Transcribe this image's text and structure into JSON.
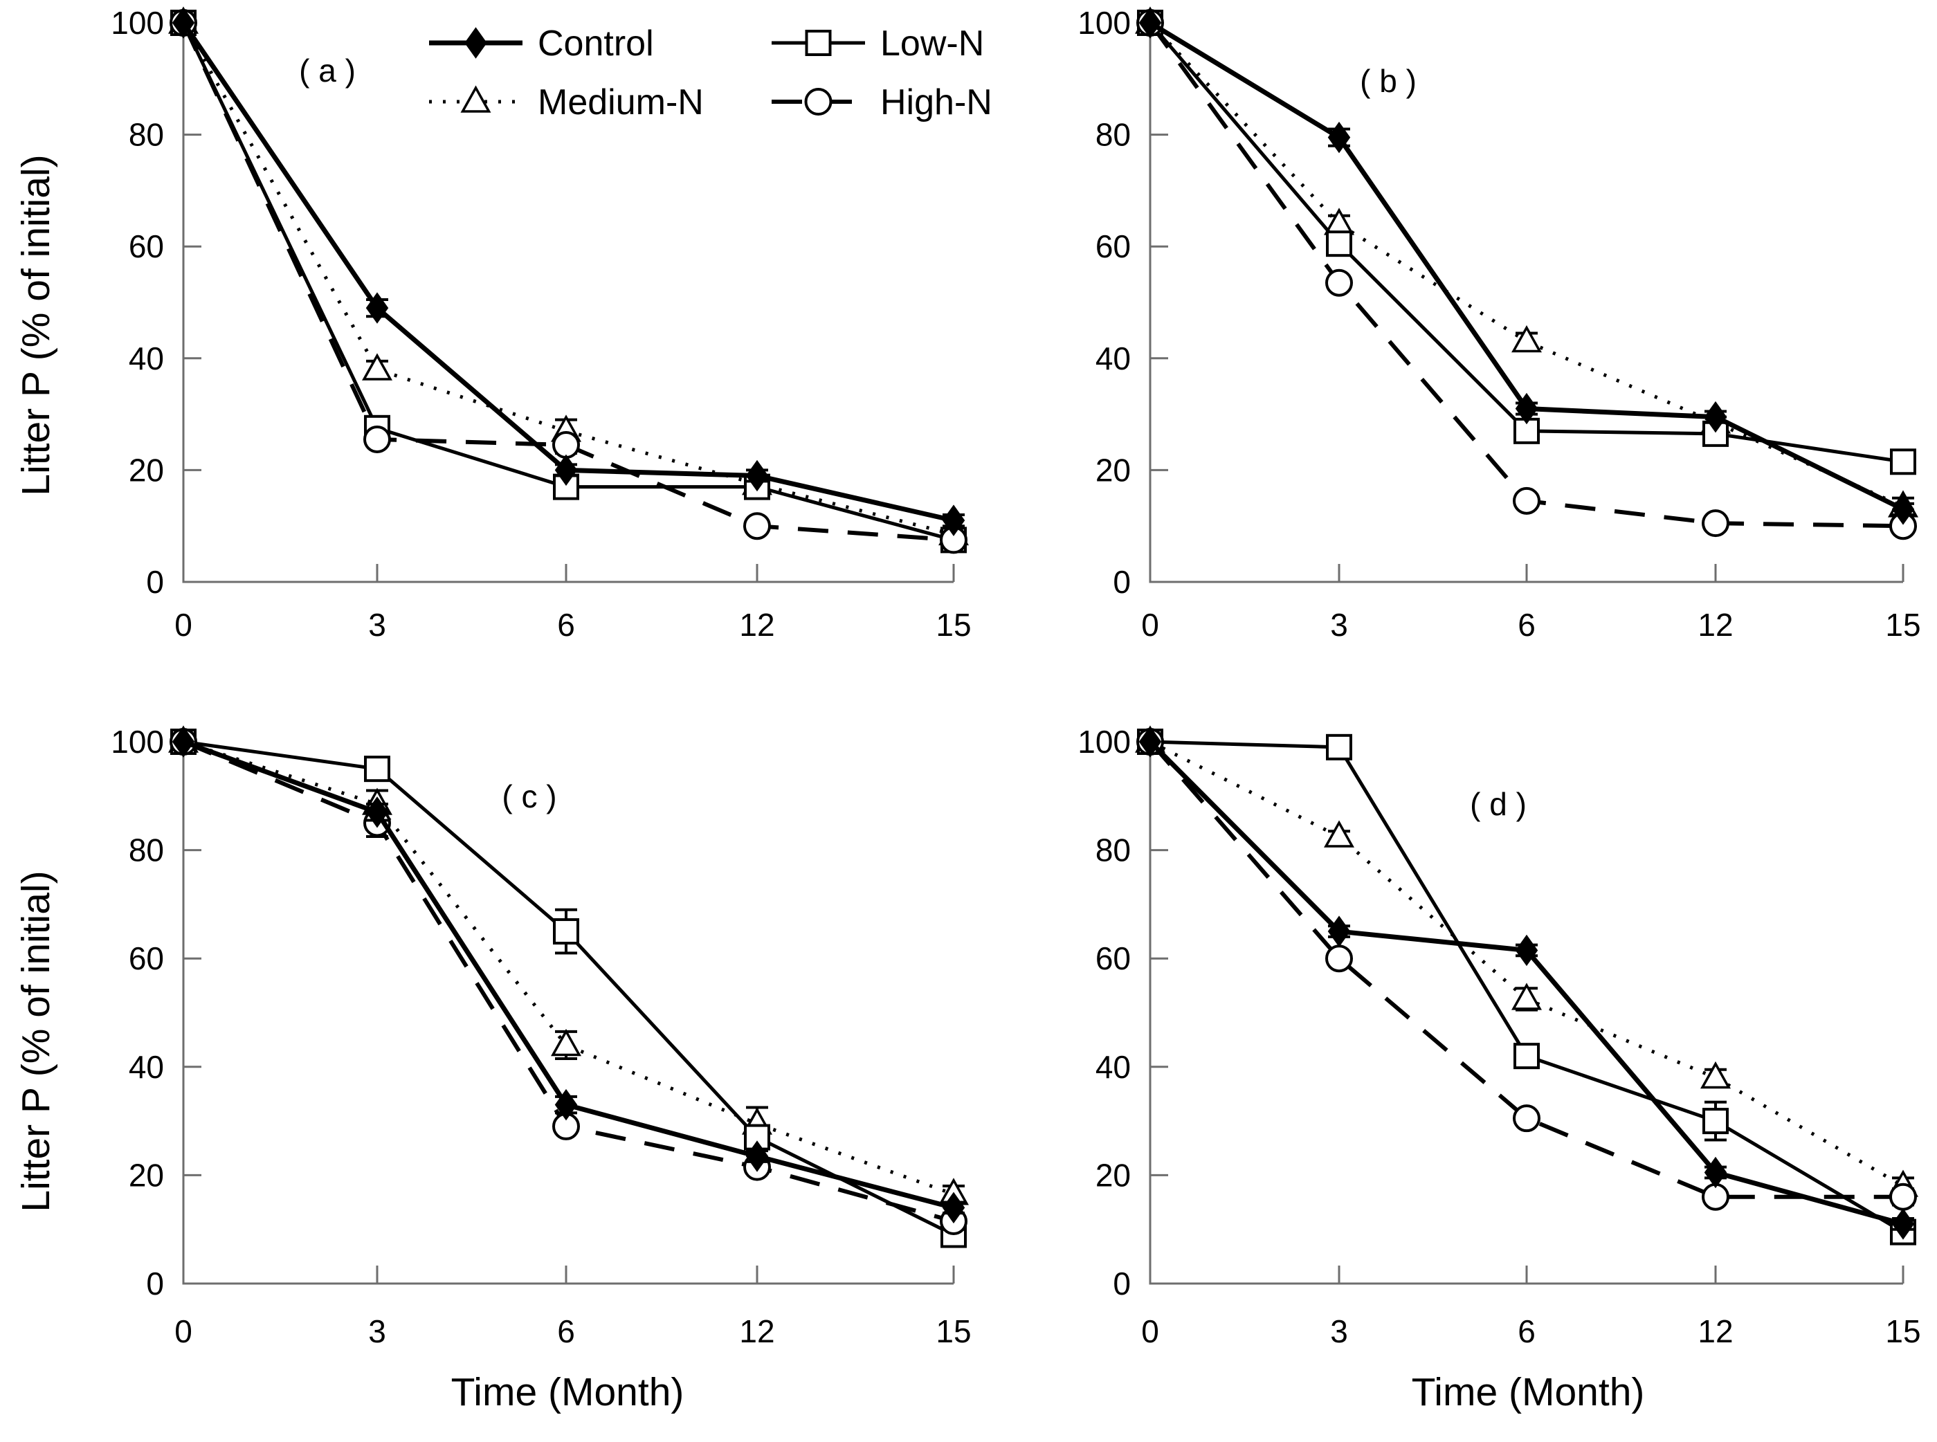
{
  "figure": {
    "y_axis_title": "Litter P (% of initial)",
    "x_axis_title": "Time (Month)",
    "background_color": "#ffffff",
    "ink_color": "#000000",
    "axis_line_color": "#6e6e6e"
  },
  "legend": {
    "items": [
      {
        "series": "Control",
        "label": "Control",
        "marker_icon": "filled-diamond-icon",
        "line": "solid"
      },
      {
        "series": "Low-N",
        "label": "Low-N",
        "marker_icon": "open-square-icon",
        "line": "solid"
      },
      {
        "series": "Medium-N",
        "label": "Medium-N",
        "marker_icon": "open-triangle-icon",
        "line": "dotted"
      },
      {
        "series": "High-N",
        "label": "High-N",
        "marker_icon": "open-circle-icon",
        "line": "dashed"
      }
    ]
  },
  "series_styles": {
    "Control": {
      "marker": "filled-diamond",
      "line": "solid",
      "color": "#000000"
    },
    "Low-N": {
      "marker": "open-square",
      "line": "solid",
      "color": "#000000"
    },
    "Medium-N": {
      "marker": "open-triangle",
      "line": "dotted",
      "color": "#000000"
    },
    "High-N": {
      "marker": "open-circle",
      "line": "dashed",
      "color": "#000000"
    }
  },
  "chart_data": [
    {
      "type": "line",
      "panel": "a",
      "panel_label": "( a )",
      "xlabel": "Time (Month)",
      "ylabel": "Litter P (% of initial)",
      "x_categories": [
        0,
        3,
        6,
        12,
        15
      ],
      "y_ticks": [
        0,
        20,
        40,
        60,
        80,
        100
      ],
      "ylim": [
        0,
        100
      ],
      "series": [
        {
          "name": "Control",
          "values": [
            100,
            49,
            20,
            19,
            11
          ],
          "errors": [
            0,
            1.5,
            1,
            1,
            1
          ]
        },
        {
          "name": "Low-N",
          "values": [
            100,
            27.5,
            17,
            17,
            7.5
          ],
          "errors": [
            0,
            1,
            1,
            1,
            1
          ]
        },
        {
          "name": "Medium-N",
          "values": [
            100,
            38,
            27,
            17.5,
            8.5
          ],
          "errors": [
            0,
            1.5,
            2,
            1.5,
            1
          ]
        },
        {
          "name": "High-N",
          "values": [
            100,
            25.5,
            24.5,
            10,
            7.5
          ],
          "errors": [
            0,
            1,
            1.5,
            1,
            1
          ]
        }
      ]
    },
    {
      "type": "line",
      "panel": "b",
      "panel_label": "( b )",
      "xlabel": "Time (Month)",
      "ylabel": "Litter P (% of initial)",
      "x_categories": [
        0,
        3,
        6,
        12,
        15
      ],
      "y_ticks": [
        0,
        20,
        40,
        60,
        80,
        100
      ],
      "ylim": [
        0,
        100
      ],
      "series": [
        {
          "name": "Control",
          "values": [
            100,
            79.5,
            31,
            29.5,
            13
          ],
          "errors": [
            0,
            1.5,
            1,
            1,
            1
          ]
        },
        {
          "name": "Low-N",
          "values": [
            100,
            60.5,
            27,
            26.5,
            21.5
          ],
          "errors": [
            0,
            1.5,
            1,
            1,
            1.5
          ]
        },
        {
          "name": "Medium-N",
          "values": [
            100,
            64,
            43,
            28.5,
            13.5
          ],
          "errors": [
            0,
            1.5,
            1.5,
            1,
            1.5
          ]
        },
        {
          "name": "High-N",
          "values": [
            100,
            53.5,
            14.5,
            10.5,
            10
          ],
          "errors": [
            0,
            1,
            1,
            1,
            1
          ]
        }
      ]
    },
    {
      "type": "line",
      "panel": "c",
      "panel_label": "( c )",
      "xlabel": "Time (Month)",
      "ylabel": "Litter P (% of initial)",
      "x_categories": [
        0,
        3,
        6,
        12,
        15
      ],
      "y_ticks": [
        0,
        20,
        40,
        60,
        80,
        100
      ],
      "ylim": [
        0,
        100
      ],
      "series": [
        {
          "name": "Control",
          "values": [
            100,
            87,
            33,
            23.5,
            14
          ],
          "errors": [
            0,
            1.5,
            1.5,
            1,
            1
          ]
        },
        {
          "name": "Low-N",
          "values": [
            100,
            95,
            65,
            27,
            9
          ],
          "errors": [
            0,
            1,
            4,
            1.5,
            1
          ]
        },
        {
          "name": "Medium-N",
          "values": [
            100,
            88.5,
            44,
            29.5,
            16.5
          ],
          "errors": [
            0,
            2.5,
            2.5,
            3,
            1.5
          ]
        },
        {
          "name": "High-N",
          "values": [
            100,
            85,
            29,
            21.5,
            11.5
          ],
          "errors": [
            0,
            2.5,
            1,
            1,
            1.5
          ]
        }
      ]
    },
    {
      "type": "line",
      "panel": "d",
      "panel_label": "( d )",
      "xlabel": "Time (Month)",
      "ylabel": "Litter P (% of initial)",
      "x_categories": [
        0,
        3,
        6,
        12,
        15
      ],
      "y_ticks": [
        0,
        20,
        40,
        60,
        80,
        100
      ],
      "ylim": [
        0,
        100
      ],
      "series": [
        {
          "name": "Control",
          "values": [
            100,
            65,
            61.5,
            20.5,
            11
          ],
          "errors": [
            0,
            1,
            1,
            1,
            1
          ]
        },
        {
          "name": "Low-N",
          "values": [
            100,
            99,
            42,
            30,
            9.5
          ],
          "errors": [
            0,
            1.5,
            1,
            3.5,
            1
          ]
        },
        {
          "name": "Medium-N",
          "values": [
            100,
            82.5,
            52.5,
            38,
            18
          ],
          "errors": [
            0,
            1,
            2,
            1.5,
            1.5
          ]
        },
        {
          "name": "High-N",
          "values": [
            100,
            60,
            30.5,
            16,
            16
          ],
          "errors": [
            0,
            1,
            1,
            1,
            1.5
          ]
        }
      ]
    }
  ]
}
